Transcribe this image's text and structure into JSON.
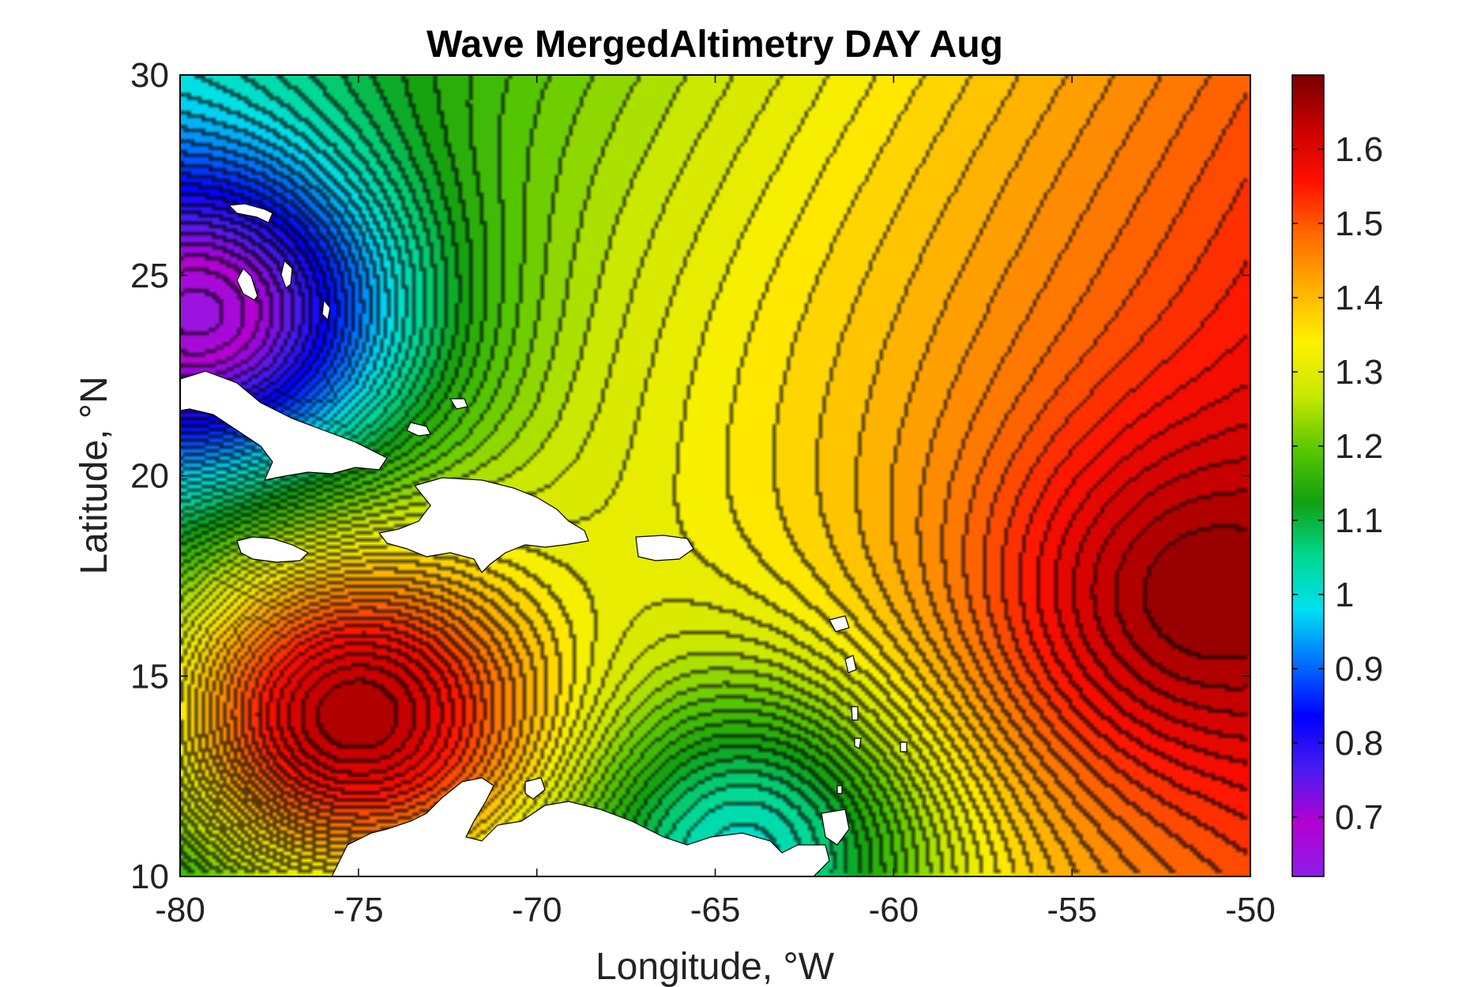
{
  "chart_data": {
    "type": "heatmap",
    "title": "Wave MergedAltimetry DAY Aug",
    "xlabel": "Longitude, °W",
    "ylabel": "Latitude, °N",
    "xlim": [
      -80,
      -50
    ],
    "ylim": [
      10,
      30
    ],
    "x_ticks": [
      -80,
      -75,
      -70,
      -65,
      -60,
      -55,
      -50
    ],
    "y_ticks": [
      10,
      15,
      20,
      25,
      30
    ],
    "colorbar": {
      "range": [
        0.62,
        1.7
      ],
      "ticks": [
        0.7,
        0.8,
        0.9,
        1,
        1.1,
        1.2,
        1.3,
        1.4,
        1.5,
        1.6
      ],
      "colors": [
        "#8a1fe8",
        "#b400d2",
        "#4a1cf0",
        "#0000ff",
        "#0070ff",
        "#00e0f0",
        "#00d890",
        "#10a010",
        "#5ac800",
        "#c8e800",
        "#fff000",
        "#ffb000",
        "#ff6a00",
        "#ff1000",
        "#c80000",
        "#780000"
      ]
    },
    "grid": false,
    "contour_lines": true,
    "land_color": "#ffffff",
    "field_features": [
      {
        "name": "minimum",
        "lon": -79.5,
        "lat": 24,
        "value": 0.65
      },
      {
        "name": "minimum",
        "lon": -64.5,
        "lat": 10.5,
        "value": 1.0
      },
      {
        "name": "maximum",
        "lon": -75,
        "lat": 14,
        "value": 1.66
      },
      {
        "name": "maximum",
        "lon": -51,
        "lat": 17,
        "value": 1.68
      }
    ]
  }
}
